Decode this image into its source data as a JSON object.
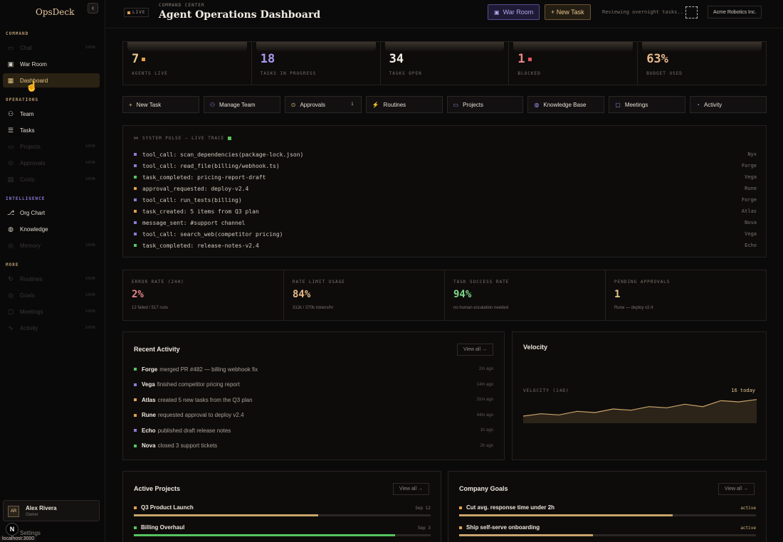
{
  "sidebar": {
    "brand": "OpsDeck",
    "collapse_icon": "‹",
    "sections": [
      {
        "label": "COMMAND",
        "color": "#b99a72"
      },
      {
        "label": "OPERATIONS",
        "color": "#b99a72"
      },
      {
        "label": "INTELLIGENCE",
        "color": "#8d7ad8"
      },
      {
        "label": "MORE",
        "color": "#b99a72"
      }
    ],
    "items": [
      {
        "label": "Chat",
        "icon": "chat-icon",
        "badge": "SOON",
        "dim": true
      },
      {
        "label": "War Room",
        "icon": "monitor-icon",
        "badge": "",
        "dim": false
      },
      {
        "label": "Dashboard",
        "icon": "grid-icon",
        "badge": "",
        "dim": false,
        "active": true
      },
      {
        "label": "Team",
        "icon": "team-icon",
        "badge": "",
        "dim": false
      },
      {
        "label": "Tasks",
        "icon": "tasks-icon",
        "badge": "",
        "dim": false
      },
      {
        "label": "Projects",
        "icon": "folder-icon",
        "badge": "SOON",
        "dim": true
      },
      {
        "label": "Approvals",
        "icon": "approval-icon",
        "badge": "SOON",
        "dim": true
      },
      {
        "label": "Costs",
        "icon": "costs-icon",
        "badge": "SOON",
        "dim": true
      },
      {
        "label": "Org Chart",
        "icon": "org-chart-icon",
        "badge": "",
        "dim": false
      },
      {
        "label": "Knowledge",
        "icon": "knowledge-icon",
        "badge": "",
        "dim": false
      },
      {
        "label": "Memory",
        "icon": "memory-icon",
        "badge": "SOON",
        "dim": true
      },
      {
        "label": "Routines",
        "icon": "routines-icon",
        "badge": "SOON",
        "dim": true
      },
      {
        "label": "Goals",
        "icon": "goals-icon",
        "badge": "SOON",
        "dim": true
      },
      {
        "label": "Meetings",
        "icon": "meetings-icon",
        "badge": "SOON",
        "dim": true
      },
      {
        "label": "Activity",
        "icon": "activity-icon",
        "badge": "SOON",
        "dim": true
      }
    ],
    "user": {
      "initials": "AR",
      "name": "Alex Rivera",
      "role": "Owner"
    },
    "settings_label": "Settings",
    "url_tip": "localhost:3000",
    "cursor_badge": "N"
  },
  "header": {
    "live_label": "LIVE",
    "eyebrow": "COMMAND CENTER",
    "title": "Agent Operations Dashboard",
    "war_room_label": "War Room",
    "new_task_label": "+ New Task",
    "status_text": "Reviewing overnight tasks..",
    "company": "Acme Robotics Inc."
  },
  "stats": [
    {
      "value": "7",
      "label": "AGENTS LIVE",
      "color": "#e8c98a",
      "square": "#e2a04f"
    },
    {
      "value": "18",
      "label": "TASKS IN PROGRESS",
      "color": "#a898f0",
      "square": ""
    },
    {
      "value": "34",
      "label": "TASKS OPEN",
      "color": "#f3eee6",
      "square": ""
    },
    {
      "value": "1",
      "label": "BLOCKED",
      "color": "#e8868a",
      "square": "#e05561"
    },
    {
      "value": "63%",
      "label": "BUDGET USED",
      "color": "#e8b98a",
      "square": ""
    }
  ],
  "quick_actions": [
    {
      "label": "New Task",
      "icon": "+",
      "icon_name": "plus-icon",
      "icon_color": "#e7c58c",
      "count": ""
    },
    {
      "label": "Manage Team",
      "icon": "⚇",
      "icon_name": "team-icon",
      "icon_color": "#9d8ff0",
      "count": ""
    },
    {
      "label": "Approvals",
      "icon": "⊙",
      "icon_name": "approval-icon",
      "icon_color": "#e0b67a",
      "count": "1"
    },
    {
      "label": "Routines",
      "icon": "⚡",
      "icon_name": "bolt-icon",
      "icon_color": "#6fcf6f",
      "count": ""
    },
    {
      "label": "Projects",
      "icon": "▭",
      "icon_name": "folder-icon",
      "icon_color": "#9d8ff0",
      "count": ""
    },
    {
      "label": "Knowledge Base",
      "icon": "◍",
      "icon_name": "knowledge-icon",
      "icon_color": "#9d8ff0",
      "count": ""
    },
    {
      "label": "Meetings",
      "icon": "▢",
      "icon_name": "meetings-icon",
      "icon_color": "#8f9cf0",
      "count": ""
    },
    {
      "label": "Activity",
      "icon": "◔",
      "icon_name": "clock-icon",
      "icon_color": "#8f9cf0",
      "count": ""
    }
  ],
  "pulse": {
    "title": "SYSTEM PULSE — LIVE TRACE",
    "rows": [
      {
        "text": "tool_call: scan_dependencies(package-lock.json)",
        "agent": "Nyx",
        "color": "#8d7ad8"
      },
      {
        "text": "tool_call: read_file(billing/webhook.ts)",
        "agent": "Forge",
        "color": "#8d7ad8"
      },
      {
        "text": "task_completed: pricing-report-draft",
        "agent": "Vega",
        "color": "#56c55f"
      },
      {
        "text": "approval_requested: deploy-v2.4",
        "agent": "Rune",
        "color": "#e2a04f"
      },
      {
        "text": "tool_call: run_tests(billing)",
        "agent": "Forge",
        "color": "#8d7ad8"
      },
      {
        "text": "task_created: 5 items from Q3 plan",
        "agent": "Atlas",
        "color": "#e2a04f"
      },
      {
        "text": "message_sent: #support channel",
        "agent": "Nova",
        "color": "#8d7ad8"
      },
      {
        "text": "tool_call: search_web(competitor pricing)",
        "agent": "Vega",
        "color": "#8d7ad8"
      },
      {
        "text": "task_completed: release-notes-v2.4",
        "agent": "Echo",
        "color": "#56c55f"
      }
    ]
  },
  "metrics": [
    {
      "label": "ERROR RATE (24H)",
      "value": "2%",
      "sub": "12 failed / 517 runs",
      "color": "#e8868a"
    },
    {
      "label": "RATE LIMIT USAGE",
      "value": "84%",
      "sub": "312k / 370k tokens/hr",
      "color": "#e8b98a"
    },
    {
      "label": "TASK SUCCESS RATE",
      "value": "94%",
      "sub": "no human escalation needed",
      "color": "#7fd88a"
    },
    {
      "label": "PENDING APPROVALS",
      "value": "1",
      "sub": "Rune — deploy v2.4",
      "color": "#e8c98a"
    }
  ],
  "recent_activity": {
    "title": "Recent Activity",
    "view_all": "View all →",
    "rows": [
      {
        "who": "Forge",
        "text": "merged PR #482 — billing webhook fix",
        "ago": "2m ago",
        "color": "#56c55f"
      },
      {
        "who": "Vega",
        "text": "finished competitor pricing report",
        "ago": "14m ago",
        "color": "#8d7ad8"
      },
      {
        "who": "Atlas",
        "text": "created 5 new tasks from the Q3 plan",
        "ago": "31m ago",
        "color": "#e2a04f"
      },
      {
        "who": "Rune",
        "text": "requested approval to deploy v2.4",
        "ago": "44m ago",
        "color": "#e2a04f"
      },
      {
        "who": "Echo",
        "text": "published draft release notes",
        "ago": "1h ago",
        "color": "#8d7ad8"
      },
      {
        "who": "Nova",
        "text": "closed 3 support tickets",
        "ago": "2h ago",
        "color": "#56c55f"
      }
    ]
  },
  "velocity": {
    "title": "Velocity",
    "label": "VELOCITY (14D)",
    "today": "16 today",
    "line_color": "#c9a46a"
  },
  "chart_data": {
    "type": "area",
    "x": [
      1,
      2,
      3,
      4,
      5,
      6,
      7,
      8,
      9,
      10,
      11,
      12,
      13,
      14
    ],
    "series": [
      {
        "values": [
          9,
          10,
          9.5,
          11,
          10.5,
          12,
          11.5,
          13,
          12.5,
          14,
          13,
          15.5,
          15,
          16
        ]
      }
    ],
    "title": "Velocity",
    "xlabel": "",
    "ylabel": "",
    "ylim": [
      0,
      40
    ]
  },
  "active_projects": {
    "title": "Active Projects",
    "view_all": "View all →",
    "rows": [
      {
        "name": "Q3 Product Launch",
        "meta": "Sep 12",
        "progress": 0.62,
        "color": "#c9a46a",
        "dot": "#e2a04f"
      },
      {
        "name": "Billing Overhaul",
        "meta": "Sep 3",
        "progress": 0.88,
        "color": "#56c55f",
        "dot": "#56c55f"
      }
    ]
  },
  "company_goals": {
    "title": "Company Goals",
    "view_all": "View all →",
    "rows": [
      {
        "name": "Cut avg. response time under 2h",
        "meta": "active",
        "progress": 0.72,
        "color": "#c9a46a",
        "dot": "#e2a04f"
      },
      {
        "name": "Ship self-serve onboarding",
        "meta": "active",
        "progress": 0.45,
        "color": "#c9a46a",
        "dot": "#e2a04f"
      }
    ]
  }
}
